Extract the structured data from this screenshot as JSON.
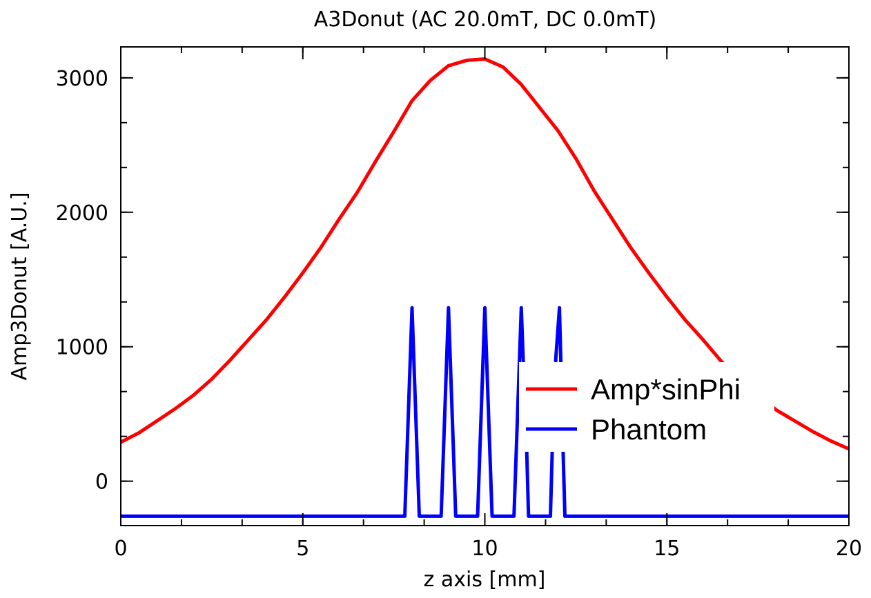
{
  "chart_data": {
    "type": "line",
    "title": "A3Donut (AC 20.0mT, DC  0.0mT)",
    "xlabel": "z axis [mm]",
    "ylabel": "Amp3Donut [A.U.]",
    "xlim": [
      0,
      20
    ],
    "ylim": [
      -330,
      3230
    ],
    "x_ticks": [
      0,
      5,
      10,
      15,
      20
    ],
    "x_tick_labels": [
      "0",
      "5",
      "10",
      "15",
      "20"
    ],
    "x_minor_step": 1.6667,
    "y_ticks": [
      0,
      1000,
      2000,
      3000
    ],
    "y_tick_labels": [
      "0",
      "1000",
      "2000",
      "3000"
    ],
    "y_minor_step": 333.33,
    "grid": false,
    "legend_position": "lower-right",
    "series": [
      {
        "name": "Amp*sinPhi",
        "color": "#ff0000",
        "x": [
          0,
          0.5,
          1,
          1.5,
          2,
          2.5,
          3,
          3.5,
          4,
          4.5,
          5,
          5.5,
          6,
          6.5,
          7,
          7.5,
          8,
          8.5,
          9,
          9.5,
          10,
          10.5,
          11,
          11.5,
          12,
          12.5,
          13,
          13.5,
          14,
          14.5,
          15,
          15.5,
          16,
          16.5,
          17,
          17.5,
          18,
          18.5,
          19,
          19.5,
          20
        ],
        "y": [
          290,
          360,
          450,
          540,
          640,
          760,
          900,
          1050,
          1200,
          1370,
          1550,
          1740,
          1950,
          2150,
          2380,
          2600,
          2830,
          2980,
          3090,
          3130,
          3140,
          3080,
          2950,
          2780,
          2610,
          2400,
          2160,
          1950,
          1740,
          1550,
          1370,
          1200,
          1050,
          890,
          760,
          650,
          530,
          450,
          370,
          300,
          240
        ]
      },
      {
        "name": "Phantom",
        "color": "#0000ff",
        "x": [
          0,
          7.8,
          8,
          8.2,
          8.8,
          9,
          9.2,
          9.8,
          10,
          10.2,
          10.8,
          11,
          11.05,
          11.15,
          11.2,
          11.8,
          11.85,
          11.95,
          12.05,
          12.15,
          12.2,
          20
        ],
        "y": [
          -260,
          -260,
          1290,
          -260,
          -260,
          1290,
          -260,
          -260,
          1290,
          -260,
          -260,
          1290,
          920,
          220,
          -260,
          -260,
          220,
          920,
          1290,
          220,
          -260,
          -260
        ]
      }
    ]
  }
}
